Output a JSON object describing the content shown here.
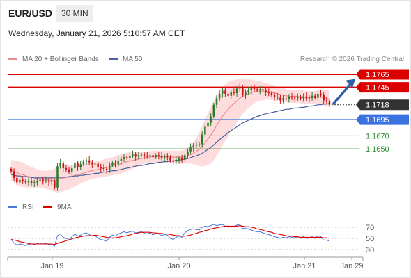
{
  "header": {
    "pair": "EUR/USD",
    "timeframe": "30 MIN",
    "datetime": "Wednesday, January 21, 2026 5:10:57 AM CET"
  },
  "legend": {
    "ma20_label": "MA 20 + Bollinger Bands",
    "ma50_label": "MA 50",
    "credit": "Research © 2026 Trading Central"
  },
  "rsi_legend": {
    "rsi_label": "RSI",
    "ma_label": "9MA"
  },
  "colors": {
    "resistance": "#dd0000",
    "support_blue": "#3a72e0",
    "support_green": "#2f8f2f",
    "current": "#333333",
    "up_candle": "#2a7a2a",
    "down_candle": "#cc1111",
    "ma20": "#f08a8a",
    "ma50": "#4a5f9a",
    "bollinger_fill": "#fbd6d6",
    "rsi": "#4a78d8",
    "rsi_ma": "#dd0000",
    "arrow": "#2f5fa8"
  },
  "chart_data": [
    {
      "type": "candlestick",
      "title": "EUR/USD 30 MIN",
      "x_ticks": [
        "Jan 19",
        "Jan 20",
        "Jan 21",
        "Jan 29"
      ],
      "ylim": [
        1.159,
        1.177
      ],
      "levels": [
        {
          "name": "resistance-2",
          "value": 1.1765,
          "label": "1.1765",
          "kind": "resistance"
        },
        {
          "name": "resistance-1",
          "value": 1.1745,
          "label": "1.1745",
          "kind": "resistance"
        },
        {
          "name": "current",
          "value": 1.1718,
          "label": "1.1718",
          "kind": "current"
        },
        {
          "name": "support-1",
          "value": 1.1695,
          "label": "1.1695",
          "kind": "support_blue"
        },
        {
          "name": "support-2",
          "value": 1.167,
          "label": "1.1670",
          "kind": "support_green"
        },
        {
          "name": "support-3",
          "value": 1.165,
          "label": "1.1650",
          "kind": "support_green"
        }
      ],
      "close": [
        1.1615,
        1.1605,
        1.1598,
        1.1602,
        1.16,
        1.1598,
        1.16,
        1.1597,
        1.1598,
        1.16,
        1.1602,
        1.16,
        1.1601,
        1.1599,
        1.16,
        1.159,
        1.1623,
        1.1628,
        1.162,
        1.1618,
        1.1614,
        1.162,
        1.1628,
        1.1622,
        1.1626,
        1.163,
        1.1632,
        1.1629,
        1.1626,
        1.1627,
        1.1622,
        1.162,
        1.1619,
        1.1617,
        1.1624,
        1.1628,
        1.1626,
        1.1631,
        1.1634,
        1.1637,
        1.1636,
        1.1639,
        1.1641,
        1.1638,
        1.164,
        1.1641,
        1.1639,
        1.1638,
        1.164,
        1.1637,
        1.164,
        1.1639,
        1.1636,
        1.1638,
        1.1637,
        1.1632,
        1.163,
        1.1633,
        1.1635,
        1.1633,
        1.164,
        1.1646,
        1.1652,
        1.1655,
        1.1656,
        1.1657,
        1.1672,
        1.1684,
        1.169,
        1.17,
        1.1718,
        1.1728,
        1.1735,
        1.174,
        1.1735,
        1.1732,
        1.1737,
        1.1736,
        1.1743,
        1.1745,
        1.1733,
        1.1737,
        1.174,
        1.1744,
        1.1742,
        1.174,
        1.1742,
        1.174,
        1.1738,
        1.1736,
        1.1733,
        1.173,
        1.1729,
        1.1725,
        1.1728,
        1.1727,
        1.173,
        1.1729,
        1.1728,
        1.173,
        1.1728,
        1.1731,
        1.1728,
        1.1729,
        1.1732,
        1.1729,
        1.1735,
        1.1733,
        1.1725,
        1.1724,
        1.1718
      ],
      "ma20": [
        1.1617,
        1.1615,
        1.1613,
        1.1611,
        1.161,
        1.1608,
        1.1607,
        1.1606,
        1.1605,
        1.1604,
        1.1603,
        1.1603,
        1.1602,
        1.1602,
        1.1601,
        1.1601,
        1.1602,
        1.1604,
        1.1605,
        1.1606,
        1.1606,
        1.1607,
        1.1609,
        1.161,
        1.1611,
        1.1612,
        1.1614,
        1.1615,
        1.1616,
        1.1617,
        1.1618,
        1.1619,
        1.162,
        1.1621,
        1.1622,
        1.1623,
        1.1624,
        1.1625,
        1.1627,
        1.1628,
        1.163,
        1.1631,
        1.1632,
        1.1633,
        1.1634,
        1.1635,
        1.1636,
        1.1637,
        1.1637,
        1.1638,
        1.1638,
        1.1638,
        1.1638,
        1.1638,
        1.1638,
        1.1638,
        1.1637,
        1.1637,
        1.1637,
        1.1637,
        1.1638,
        1.1639,
        1.1641,
        1.1643,
        1.1646,
        1.1649,
        1.1654,
        1.1659,
        1.1665,
        1.1671,
        1.1678,
        1.1686,
        1.1693,
        1.17,
        1.1706,
        1.1711,
        1.1716,
        1.172,
        1.1724,
        1.1728,
        1.1731,
        1.1733,
        1.1735,
        1.1737,
        1.1738,
        1.1739,
        1.1739,
        1.1739,
        1.1739,
        1.1738,
        1.1737,
        1.1736,
        1.1735,
        1.1734,
        1.1733,
        1.1732,
        1.1731,
        1.1731,
        1.1731,
        1.1731,
        1.173,
        1.173,
        1.1729,
        1.1729,
        1.1729,
        1.1729,
        1.173,
        1.173,
        1.1729,
        1.1728,
        1.1727
      ],
      "ma50": [
        1.161,
        1.1609,
        1.1608,
        1.1608,
        1.1607,
        1.1607,
        1.1606,
        1.1606,
        1.1605,
        1.1605,
        1.1605,
        1.1605,
        1.1605,
        1.1605,
        1.1605,
        1.1605,
        1.1605,
        1.1606,
        1.1606,
        1.1606,
        1.1607,
        1.1607,
        1.1608,
        1.1608,
        1.1609,
        1.1609,
        1.161,
        1.161,
        1.1611,
        1.1612,
        1.1612,
        1.1613,
        1.1614,
        1.1614,
        1.1615,
        1.1616,
        1.1616,
        1.1617,
        1.1618,
        1.1619,
        1.162,
        1.1621,
        1.1622,
        1.1623,
        1.1624,
        1.1624,
        1.1625,
        1.1626,
        1.1627,
        1.1627,
        1.1628,
        1.1629,
        1.1629,
        1.163,
        1.163,
        1.1631,
        1.1631,
        1.1632,
        1.1632,
        1.1633,
        1.1634,
        1.1635,
        1.1636,
        1.1638,
        1.1639,
        1.1641,
        1.1643,
        1.1646,
        1.1649,
        1.1652,
        1.1656,
        1.166,
        1.1664,
        1.1668,
        1.1671,
        1.1675,
        1.1678,
        1.1681,
        1.1684,
        1.1687,
        1.169,
        1.1692,
        1.1694,
        1.1696,
        1.1698,
        1.17,
        1.1701,
        1.1703,
        1.1704,
        1.1705,
        1.1706,
        1.1707,
        1.1708,
        1.1709,
        1.171,
        1.1711,
        1.1711,
        1.1712,
        1.1713,
        1.1713,
        1.1714,
        1.1714,
        1.1715,
        1.1716,
        1.1716,
        1.1717,
        1.1718,
        1.1718,
        1.1719,
        1.1719,
        1.172
      ],
      "bb_width": [
        0.0016,
        0.0017,
        0.0018,
        0.0019,
        0.0019,
        0.0018,
        0.0017,
        0.0016,
        0.0015,
        0.0014,
        0.0013,
        0.0013,
        0.0014,
        0.0015,
        0.0016,
        0.0018,
        0.002,
        0.0021,
        0.0021,
        0.002,
        0.0019,
        0.0018,
        0.0017,
        0.0016,
        0.0015,
        0.0014,
        0.0014,
        0.0013,
        0.0013,
        0.0013,
        0.0013,
        0.0013,
        0.0013,
        0.0014,
        0.0014,
        0.0014,
        0.0014,
        0.0015,
        0.0015,
        0.0015,
        0.0014,
        0.0014,
        0.0013,
        0.0012,
        0.0011,
        0.001,
        0.0009,
        0.0009,
        0.0009,
        0.0009,
        0.0009,
        0.0009,
        0.0009,
        0.0009,
        0.0009,
        0.0009,
        0.001,
        0.001,
        0.001,
        0.001,
        0.0011,
        0.0012,
        0.0014,
        0.0017,
        0.0021,
        0.0026,
        0.0031,
        0.0036,
        0.004,
        0.0044,
        0.0046,
        0.0047,
        0.0047,
        0.0046,
        0.0044,
        0.0042,
        0.0039,
        0.0036,
        0.0033,
        0.003,
        0.0027,
        0.0024,
        0.0022,
        0.002,
        0.0018,
        0.0016,
        0.0015,
        0.0014,
        0.0013,
        0.0012,
        0.0012,
        0.0011,
        0.0011,
        0.0011,
        0.0011,
        0.001,
        0.001,
        0.001,
        0.001,
        0.001,
        0.001,
        0.001,
        0.001,
        0.001,
        0.001,
        0.001,
        0.0011,
        0.0011,
        0.0012,
        0.0012,
        0.0013
      ],
      "projection": {
        "from": 1.172,
        "to": 1.176
      }
    },
    {
      "type": "line",
      "title": "RSI",
      "yticks": [
        70,
        50,
        30
      ],
      "ylim": [
        20,
        80
      ],
      "series": [
        {
          "name": "RSI",
          "values": [
            48,
            42,
            38,
            40,
            39,
            37,
            40,
            38,
            39,
            41,
            42,
            40,
            41,
            39,
            40,
            36,
            55,
            58,
            52,
            50,
            48,
            53,
            58,
            54,
            56,
            59,
            60,
            57,
            54,
            55,
            50,
            48,
            47,
            45,
            52,
            56,
            54,
            58,
            60,
            62,
            60,
            62,
            63,
            60,
            61,
            62,
            59,
            58,
            60,
            56,
            59,
            58,
            55,
            57,
            56,
            50,
            48,
            52,
            54,
            52,
            60,
            64,
            66,
            67,
            66,
            65,
            70,
            72,
            71,
            73,
            75,
            73,
            74,
            75,
            72,
            70,
            72,
            71,
            74,
            75,
            68,
            68,
            67,
            65,
            63,
            62,
            62,
            60,
            58,
            57,
            55,
            53,
            52,
            50,
            52,
            51,
            53,
            52,
            51,
            53,
            51,
            53,
            50,
            51,
            53,
            50,
            55,
            53,
            47,
            47,
            45
          ]
        },
        {
          "name": "9MA",
          "values": [
            48,
            47,
            46,
            44,
            43,
            42,
            41,
            40,
            40,
            40,
            40,
            40,
            40,
            40,
            40,
            39,
            41,
            43,
            44,
            46,
            47,
            49,
            51,
            52,
            53,
            54,
            55,
            55,
            55,
            56,
            55,
            54,
            53,
            52,
            51,
            51,
            51,
            52,
            53,
            54,
            55,
            56,
            58,
            59,
            60,
            61,
            61,
            61,
            61,
            60,
            60,
            59,
            59,
            58,
            58,
            57,
            56,
            55,
            55,
            54,
            54,
            55,
            56,
            58,
            59,
            61,
            62,
            64,
            65,
            67,
            68,
            69,
            70,
            71,
            72,
            72,
            72,
            72,
            72,
            73,
            72,
            71,
            71,
            70,
            69,
            67,
            66,
            65,
            63,
            62,
            61,
            59,
            58,
            57,
            56,
            55,
            54,
            54,
            53,
            53,
            52,
            52,
            52,
            52,
            52,
            52,
            52,
            52,
            51,
            51,
            50
          ]
        }
      ]
    }
  ]
}
